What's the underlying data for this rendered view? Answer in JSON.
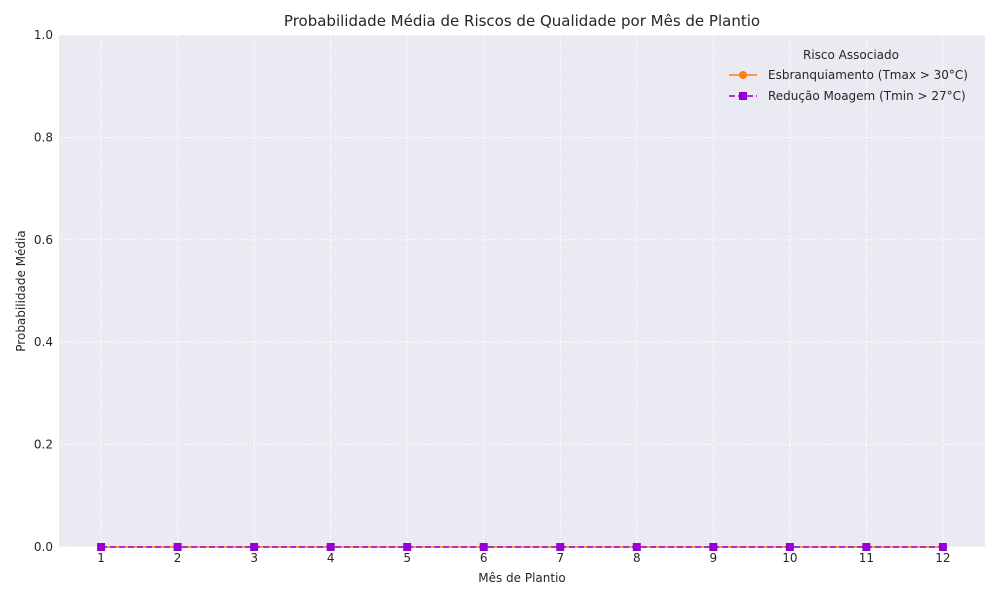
{
  "chart_data": {
    "type": "line",
    "title": "Probabilidade Média de Riscos de Qualidade por Mês de Plantio",
    "xlabel": "Mês de Plantio",
    "ylabel": "Probabilidade Média",
    "x": [
      1,
      2,
      3,
      4,
      5,
      6,
      7,
      8,
      9,
      10,
      11,
      12
    ],
    "x_tick_labels": [
      "1",
      "2",
      "3",
      "4",
      "5",
      "6",
      "7",
      "8",
      "9",
      "10",
      "11",
      "12"
    ],
    "ylim": [
      0,
      1
    ],
    "y_ticks": [
      0.0,
      0.2,
      0.4,
      0.6,
      0.8,
      1.0
    ],
    "y_tick_labels": [
      "0.0",
      "0.2",
      "0.4",
      "0.6",
      "0.8",
      "1.0"
    ],
    "grid": true,
    "legend": {
      "title": "Risco Associado",
      "placement": "top-right"
    },
    "series": [
      {
        "name": "Esbranquiamento (Tmax > 30°C)",
        "values": [
          0,
          0,
          0,
          0,
          0,
          0,
          0,
          0,
          0,
          0,
          0,
          0
        ],
        "color": "#ff7f0e",
        "marker": "circle",
        "line_style": "solid"
      },
      {
        "name": "Redução Moagem (Tmin > 27°C)",
        "values": [
          0,
          0,
          0,
          0,
          0,
          0,
          0,
          0,
          0,
          0,
          0,
          0
        ],
        "color": "#9400d3",
        "marker": "square",
        "line_style": "dashed"
      }
    ],
    "background_color": "#eaeaf2",
    "grid_color": "#ffffff"
  }
}
